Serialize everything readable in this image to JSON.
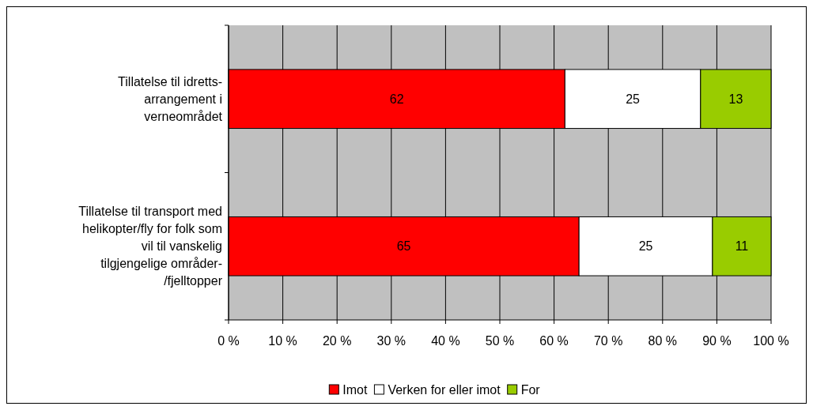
{
  "chart_data": {
    "type": "bar",
    "orientation": "horizontal",
    "stacked": true,
    "categories": [
      "Tillatelse til idretts-arrangement i verneområdet",
      "Tillatelse til transport med helikopter/fly for folk som vil til vanskelig tilgjengelige områder-/fjelltopper"
    ],
    "series": [
      {
        "name": "Imot",
        "color": "#ff0000",
        "values": [
          62,
          64.6
        ],
        "value_labels": [
          "62",
          "65"
        ]
      },
      {
        "name": "Verken for eller imot",
        "color": "#ffffff",
        "values": [
          25,
          24.6
        ],
        "value_labels": [
          "25",
          "25"
        ]
      },
      {
        "name": "For",
        "color": "#99cc00",
        "values": [
          13,
          10.8
        ],
        "value_labels": [
          "13",
          "11"
        ]
      }
    ],
    "xlim": [
      0,
      100
    ],
    "xticks": [
      {
        "value": 0,
        "label": "0 %"
      },
      {
        "value": 10,
        "label": "10 %"
      },
      {
        "value": 20,
        "label": "20 %"
      },
      {
        "value": 30,
        "label": "30 %"
      },
      {
        "value": 40,
        "label": "40 %"
      },
      {
        "value": 50,
        "label": "50 %"
      },
      {
        "value": 60,
        "label": "60 %"
      },
      {
        "value": 70,
        "label": "70 %"
      },
      {
        "value": 80,
        "label": "80 %"
      },
      {
        "value": 90,
        "label": "90 %"
      },
      {
        "value": 100,
        "label": "100 %"
      }
    ],
    "grid": "x",
    "legend": "bottom"
  }
}
